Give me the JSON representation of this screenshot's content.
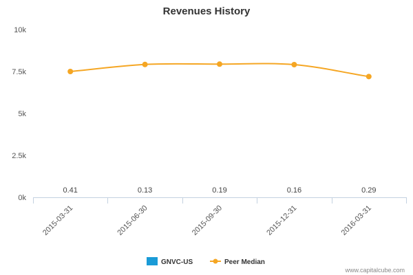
{
  "chart_data": {
    "type": "line",
    "title": "Revenues History",
    "categories": [
      "2015-03-31",
      "2015-06-30",
      "2015-09-30",
      "2015-12-31",
      "2016-03-31"
    ],
    "y_tick_labels": [
      "0k",
      "2.5k",
      "5k",
      "7.5k",
      "10k"
    ],
    "y_tick_values": [
      0,
      2500,
      5000,
      7500,
      10000
    ],
    "ylim": [
      0,
      10000
    ],
    "series": [
      {
        "name": "GNVC-US",
        "type": "bar",
        "color": "#1a9bd7",
        "values": [
          0.41,
          0.13,
          0.19,
          0.16,
          0.29
        ],
        "data_labels": [
          "0.41",
          "0.13",
          "0.19",
          "0.16",
          "0.29"
        ]
      },
      {
        "name": "Peer Median",
        "type": "line",
        "color": "#f5a623",
        "values": [
          7500,
          7920,
          7940,
          7910,
          7200
        ]
      }
    ],
    "legend_position": "bottom-center"
  },
  "credit": "www.capitalcube.com"
}
